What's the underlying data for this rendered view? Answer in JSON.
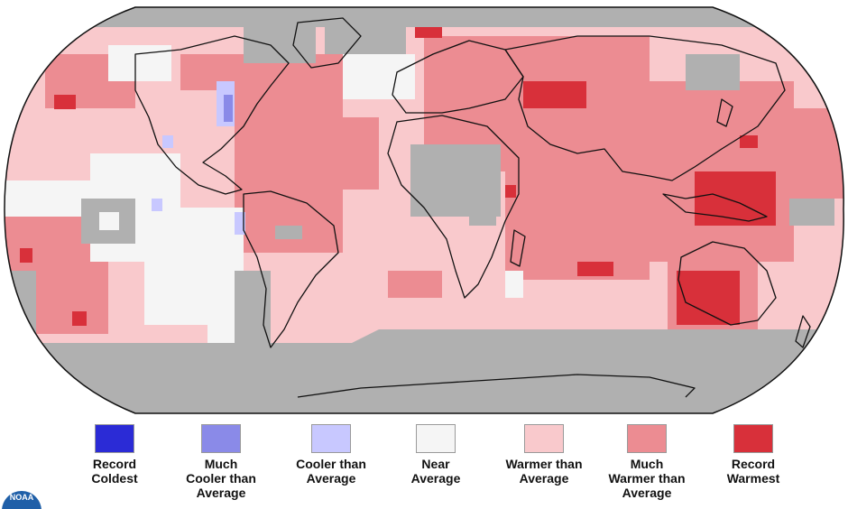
{
  "map": {
    "colors": {
      "record_coldest": "#2b2bd6",
      "much_cooler": "#8a8ae8",
      "cooler": "#c8c8ff",
      "near": "#f5f5f5",
      "warmer": "#f9c9cc",
      "much_warmer": "#ec8c92",
      "record_warmest": "#d8303a",
      "no_data": "#b0b0b0"
    }
  },
  "legend": {
    "items": [
      {
        "label": "Record\nColdest",
        "color": "#2b2bd6"
      },
      {
        "label": "Much\nCooler than\nAverage",
        "color": "#8a8ae8"
      },
      {
        "label": "Cooler than\nAverage",
        "color": "#c8c8ff"
      },
      {
        "label": "Near\nAverage",
        "color": "#f5f5f5"
      },
      {
        "label": "Warmer than\nAverage",
        "color": "#f9c9cc"
      },
      {
        "label": "Much\nWarmer than\nAverage",
        "color": "#ec8c92"
      },
      {
        "label": "Record\nWarmest",
        "color": "#d8303a"
      }
    ]
  },
  "logo": {
    "text": "NOAA"
  }
}
